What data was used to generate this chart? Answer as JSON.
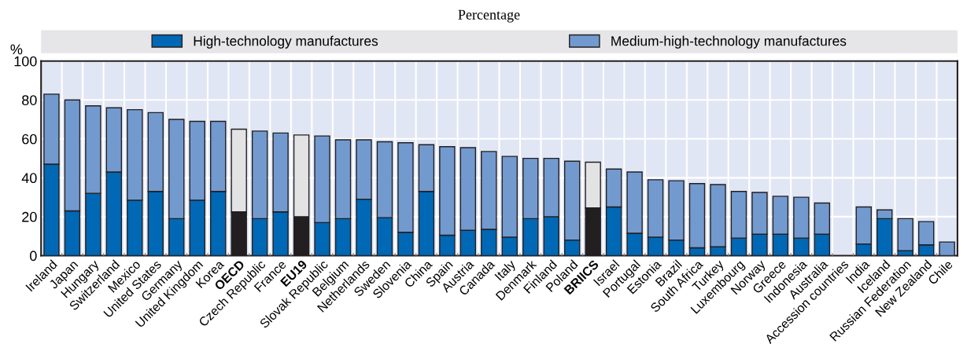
{
  "chart_data": {
    "type": "bar",
    "subtitle": "Percentage",
    "ylabel": "%",
    "stacked": true,
    "legend": "top",
    "grid": true,
    "categories": [
      "Ireland",
      "Japan",
      "Hungary",
      "Switzerland",
      "Mexico",
      "United States",
      "Germany",
      "United Kingdom",
      "Korea",
      "OECD",
      "Czech Republic",
      "France",
      "EU19",
      "Slovak Republic",
      "Belgium",
      "Netherlands",
      "Sweden",
      "Slovenia",
      "China",
      "Spain",
      "Austria",
      "Canada",
      "Italy",
      "Denmark",
      "Finland",
      "Poland",
      "BRIICS",
      "Israel",
      "Portugal",
      "Estonia",
      "Brazil",
      "South Africa",
      "Turkey",
      "Luxembourg",
      "Norway",
      "Greece",
      "Indonesia",
      "Australia",
      "Accession countries",
      "India",
      "Iceland",
      "Russian Federation",
      "New Zealand",
      "Chile"
    ],
    "ylim": [
      0,
      100
    ],
    "yticks": [
      0,
      20,
      40,
      60,
      80,
      100
    ],
    "series": [
      {
        "name": "High-technology manufactures",
        "color": "#0068b4",
        "values": [
          47,
          23,
          32,
          43,
          28.5,
          33,
          19,
          28.5,
          33,
          22.5,
          19,
          22.5,
          20,
          17,
          19,
          29,
          19.5,
          12,
          33,
          10.5,
          13,
          13.5,
          9.5,
          19,
          20,
          8,
          24.5,
          25,
          11.5,
          9.5,
          8,
          4,
          4.5,
          9,
          11,
          11,
          9,
          11,
          null,
          6,
          19,
          2.5,
          5.5,
          null
        ],
        "colors": [
          "#0068b4",
          "#0068b4",
          "#0068b4",
          "#0068b4",
          "#0068b4",
          "#0068b4",
          "#0068b4",
          "#0068b4",
          "#0068b4",
          "#231f20",
          "#0068b4",
          "#0068b4",
          "#231f20",
          "#0068b4",
          "#0068b4",
          "#0068b4",
          "#0068b4",
          "#0068b4",
          "#0068b4",
          "#0068b4",
          "#0068b4",
          "#0068b4",
          "#0068b4",
          "#0068b4",
          "#0068b4",
          "#0068b4",
          "#231f20",
          "#0068b4",
          "#0068b4",
          "#0068b4",
          "#0068b4",
          "#0068b4",
          "#0068b4",
          "#0068b4",
          "#0068b4",
          "#0068b4",
          "#0068b4",
          "#0068b4",
          "#0068b4",
          "#0068b4",
          "#0068b4",
          "#0068b4",
          "#0068b4",
          "#0068b4"
        ]
      },
      {
        "name": "Medium-high-technology manufactures",
        "color": "#729acf",
        "values": [
          36,
          57,
          45,
          33,
          46.5,
          40.5,
          51,
          40.5,
          36,
          42.5,
          45,
          40.5,
          42,
          44.5,
          40.5,
          30.5,
          39,
          46,
          24,
          45.5,
          42.5,
          40,
          41.5,
          31,
          30,
          40.5,
          23.5,
          19.5,
          31.5,
          29.5,
          30.5,
          33,
          32,
          24,
          21.5,
          19.5,
          21,
          16,
          null,
          19,
          4.5,
          16.5,
          12,
          7
        ],
        "colors": [
          "#729acf",
          "#729acf",
          "#729acf",
          "#729acf",
          "#729acf",
          "#729acf",
          "#729acf",
          "#729acf",
          "#729acf",
          "#e3e3e3",
          "#729acf",
          "#729acf",
          "#e3e3e3",
          "#729acf",
          "#729acf",
          "#729acf",
          "#729acf",
          "#729acf",
          "#729acf",
          "#729acf",
          "#729acf",
          "#729acf",
          "#729acf",
          "#729acf",
          "#729acf",
          "#729acf",
          "#e3e3e3",
          "#729acf",
          "#729acf",
          "#729acf",
          "#729acf",
          "#729acf",
          "#729acf",
          "#729acf",
          "#729acf",
          "#729acf",
          "#729acf",
          "#729acf",
          "#729acf",
          "#729acf",
          "#729acf",
          "#729acf",
          "#729acf",
          "#729acf"
        ]
      }
    ]
  }
}
